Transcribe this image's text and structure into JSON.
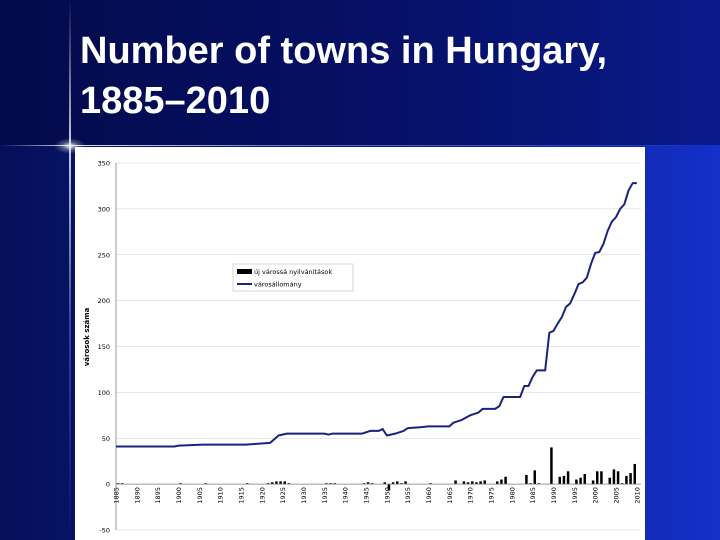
{
  "slide": {
    "title_line1": "Number of towns in Hungary,",
    "title_line2": "1885–2010"
  },
  "chart_data": {
    "type": "bar+line",
    "title": "",
    "xlabel": "",
    "ylabel": "városok száma",
    "ylim": [
      -50,
      350
    ],
    "yticks": [
      -50,
      0,
      50,
      100,
      150,
      200,
      250,
      300,
      350
    ],
    "xlim": [
      1885,
      2011
    ],
    "xtick_labels": [
      "1885",
      "1890",
      "1895",
      "1900",
      "1905",
      "1910",
      "1915",
      "1920",
      "1925",
      "1930",
      "1935",
      "1940",
      "1945",
      "1950",
      "1955",
      "1960",
      "1965",
      "1970",
      "1975",
      "1980",
      "1985",
      "1990",
      "1995",
      "2000",
      "2005",
      "2010"
    ],
    "grid": true,
    "legend_position": "upper-left-center",
    "legend": [
      {
        "label": "új várossá nyilvánítások",
        "kind": "bar",
        "color": "#000000"
      },
      {
        "label": "városállomány",
        "kind": "line",
        "color": "#1a237e"
      }
    ],
    "series": [
      {
        "name": "városállomány",
        "kind": "line",
        "color": "#1a237e",
        "points": [
          [
            1885,
            41
          ],
          [
            1893,
            41
          ],
          [
            1899,
            41
          ],
          [
            1900,
            42
          ],
          [
            1906,
            43
          ],
          [
            1916,
            43
          ],
          [
            1919,
            44
          ],
          [
            1922,
            45
          ],
          [
            1924,
            53
          ],
          [
            1926,
            55
          ],
          [
            1928,
            55
          ],
          [
            1935,
            55
          ],
          [
            1936,
            54
          ],
          [
            1937,
            55
          ],
          [
            1944,
            55
          ],
          [
            1946,
            58
          ],
          [
            1948,
            58
          ],
          [
            1949,
            60
          ],
          [
            1950,
            53
          ],
          [
            1952,
            55
          ],
          [
            1954,
            58
          ],
          [
            1955,
            61
          ],
          [
            1958,
            62
          ],
          [
            1960,
            63
          ],
          [
            1965,
            63
          ],
          [
            1966,
            67
          ],
          [
            1968,
            70
          ],
          [
            1970,
            75
          ],
          [
            1972,
            78
          ],
          [
            1973,
            82
          ],
          [
            1976,
            82
          ],
          [
            1977,
            85
          ],
          [
            1978,
            95
          ],
          [
            1982,
            95
          ],
          [
            1983,
            107
          ],
          [
            1984,
            107
          ],
          [
            1985,
            117
          ],
          [
            1986,
            124
          ],
          [
            1988,
            124
          ],
          [
            1989,
            165
          ],
          [
            1990,
            167
          ],
          [
            1991,
            175
          ],
          [
            1992,
            182
          ],
          [
            1993,
            193
          ],
          [
            1994,
            197
          ],
          [
            1995,
            207
          ],
          [
            1996,
            218
          ],
          [
            1997,
            220
          ],
          [
            1998,
            225
          ],
          [
            1999,
            240
          ],
          [
            2000,
            252
          ],
          [
            2001,
            253
          ],
          [
            2002,
            262
          ],
          [
            2003,
            276
          ],
          [
            2004,
            286
          ],
          [
            2005,
            291
          ],
          [
            2006,
            300
          ],
          [
            2007,
            305
          ],
          [
            2008,
            320
          ],
          [
            2009,
            328
          ],
          [
            2010,
            328
          ]
        ]
      },
      {
        "name": "új várossá nyilvánítások",
        "kind": "bar",
        "color": "#000000",
        "points": [
          [
            1885,
            1
          ],
          [
            1886,
            1
          ],
          [
            1900,
            1
          ],
          [
            1906,
            1
          ],
          [
            1916,
            1
          ],
          [
            1921,
            1
          ],
          [
            1922,
            2
          ],
          [
            1923,
            3
          ],
          [
            1924,
            3
          ],
          [
            1925,
            3
          ],
          [
            1926,
            1
          ],
          [
            1935,
            1
          ],
          [
            1936,
            1
          ],
          [
            1937,
            1
          ],
          [
            1944,
            1
          ],
          [
            1945,
            2
          ],
          [
            1946,
            1
          ],
          [
            1949,
            2
          ],
          [
            1950,
            -7
          ],
          [
            1951,
            2
          ],
          [
            1952,
            3
          ],
          [
            1953,
            1
          ],
          [
            1954,
            3
          ],
          [
            1960,
            1
          ],
          [
            1966,
            4
          ],
          [
            1968,
            3
          ],
          [
            1969,
            2
          ],
          [
            1970,
            3
          ],
          [
            1971,
            2
          ],
          [
            1972,
            3
          ],
          [
            1973,
            4
          ],
          [
            1976,
            3
          ],
          [
            1977,
            5
          ],
          [
            1978,
            8
          ],
          [
            1983,
            10
          ],
          [
            1984,
            1
          ],
          [
            1985,
            15
          ],
          [
            1986,
            1
          ],
          [
            1989,
            40
          ],
          [
            1991,
            8
          ],
          [
            1992,
            9
          ],
          [
            1993,
            14
          ],
          [
            1995,
            5
          ],
          [
            1996,
            7
          ],
          [
            1997,
            11
          ],
          [
            1999,
            4
          ],
          [
            2000,
            14
          ],
          [
            2001,
            14
          ],
          [
            2003,
            7
          ],
          [
            2004,
            16
          ],
          [
            2005,
            14
          ],
          [
            2006,
            1
          ],
          [
            2007,
            9
          ],
          [
            2008,
            12
          ],
          [
            2009,
            22
          ]
        ]
      }
    ]
  }
}
